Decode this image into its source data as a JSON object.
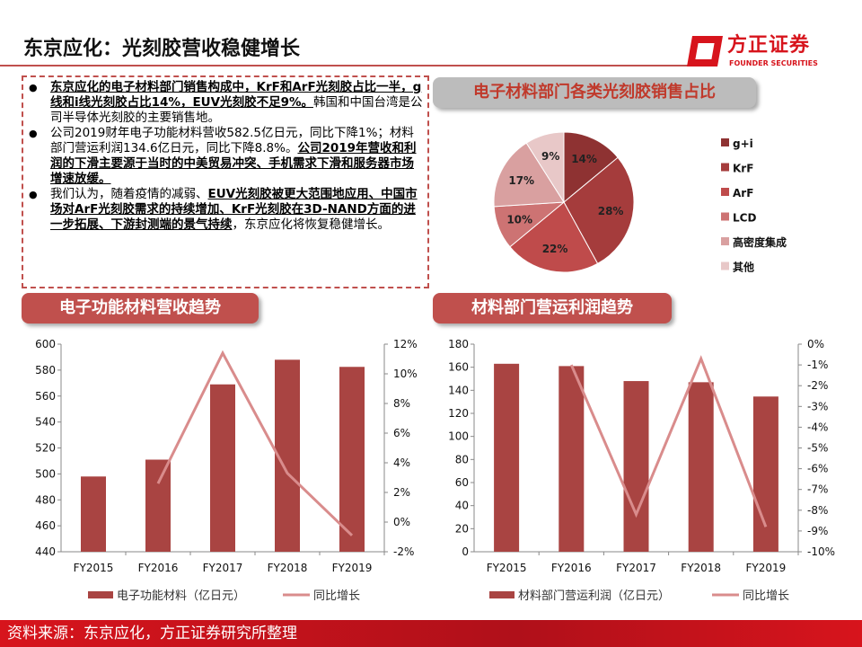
{
  "header": {
    "title": "东京应化：光刻胶营收稳健增长",
    "logo_cn": "方正证券",
    "logo_en": "FOUNDER SECURITIES"
  },
  "bullets": [
    {
      "parts": [
        {
          "t": "东京应化的电子材料部门销售构成中，KrF和ArF光刻胶占比一半，g线和i线光刻胶占比14%，EUV光刻胶不足9%。",
          "b": true
        },
        {
          "t": "韩国和中国台湾是公司半导体光刻胶的主要销售地。",
          "b": false
        }
      ]
    },
    {
      "parts": [
        {
          "t": "公司2019财年电子功能材料营收582.5亿日元，同比下降1%；材料部门营运利润134.6亿日元，同比下降8.8%。",
          "b": false
        },
        {
          "t": "公司2019年营收和利润的下滑主要源于当时的中美贸易冲突、手机需求下滑和服务器市场增速放缓。",
          "b": true
        }
      ]
    },
    {
      "parts": [
        {
          "t": "我们认为，随着疫情的减弱、",
          "b": false
        },
        {
          "t": "EUV光刻胶被更大范围地应用、中国市场对ArF光刻胶需求的持续增加、KrF光刻胶在3D-NAND方面的进一步拓展、下游封测端的景气持续",
          "b": true
        },
        {
          "t": "，东京应化将恢复稳健增长。",
          "b": false
        }
      ]
    }
  ],
  "sections": {
    "pie": "电子材料部门各类光刻胶销售占比",
    "rev": "电子功能材料营收趋势",
    "profit": "材料部门营运利润趋势"
  },
  "footer": "资料来源：东京应化，方正证券研究所整理",
  "chart_data": [
    {
      "type": "pie",
      "labels": [
        "g+i",
        "KrF",
        "ArF",
        "LCD",
        "高密度集成",
        "其他"
      ],
      "values": [
        14,
        28,
        22,
        10,
        17,
        9
      ],
      "data_labels": [
        "14%",
        "28%",
        "22%",
        "10%",
        "17%",
        "9%"
      ],
      "colors": [
        "#8e3232",
        "#a53c3c",
        "#bf4b4b",
        "#cd7373",
        "#d9a0a0",
        "#e8c8c8"
      ],
      "legend": "right"
    },
    {
      "type": "bar+line",
      "categories": [
        "FY2015",
        "FY2016",
        "FY2017",
        "FY2018",
        "FY2019"
      ],
      "series": [
        {
          "name": "电子功能材料（亿日元）",
          "type": "bar",
          "axis": "left",
          "values": [
            498,
            511,
            569,
            588,
            582.5
          ]
        },
        {
          "name": "同比增长",
          "type": "line",
          "axis": "right",
          "values": [
            null,
            2.6,
            11.4,
            3.3,
            -0.9
          ]
        }
      ],
      "ylim": [
        440,
        600
      ],
      "yticks": [
        "600",
        "580",
        "560",
        "540",
        "520",
        "500",
        "480",
        "460",
        "440"
      ],
      "y2lim": [
        -2,
        12
      ],
      "y2ticks": [
        "12%",
        "10%",
        "8%",
        "6%",
        "4%",
        "2%",
        "0%",
        "-2%"
      ],
      "legend": "bottom"
    },
    {
      "type": "bar+line",
      "categories": [
        "FY2015",
        "FY2016",
        "FY2017",
        "FY2018",
        "FY2019"
      ],
      "series": [
        {
          "name": "材料部门营运利润（亿日元）",
          "type": "bar",
          "axis": "left",
          "values": [
            163,
            161,
            148,
            147,
            134.6
          ]
        },
        {
          "name": "同比增长",
          "type": "line",
          "axis": "right",
          "values": [
            null,
            -1.0,
            -8.2,
            -0.7,
            -8.8
          ]
        }
      ],
      "ylim": [
        0,
        180
      ],
      "yticks": [
        "180",
        "160",
        "140",
        "120",
        "100",
        "80",
        "60",
        "40",
        "20",
        "0"
      ],
      "y2lim": [
        -10,
        0
      ],
      "y2ticks": [
        "0%",
        "-1%",
        "-2%",
        "-3%",
        "-4%",
        "-5%",
        "-6%",
        "-7%",
        "-8%",
        "-9%",
        "-10%"
      ],
      "legend": "bottom"
    }
  ],
  "colors": {
    "bar": "#a94442",
    "line": "#d98c8c",
    "accent": "#c0504d",
    "brand": "#d7141c"
  }
}
